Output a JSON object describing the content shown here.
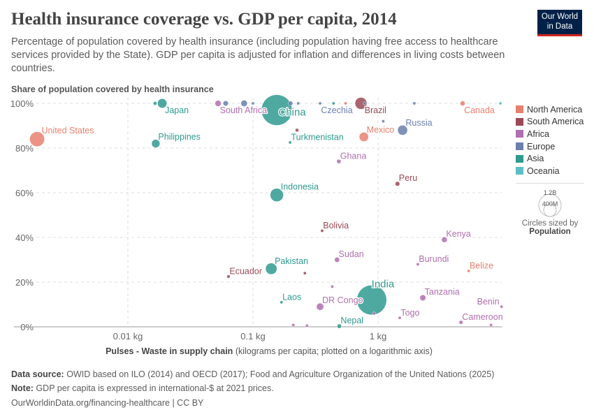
{
  "header": {
    "title": "Health insurance coverage vs. GDP per capita, 2014",
    "subtitle": "Percentage of population covered by health insurance (including population having free access to healthcare services provided by the State). GDP per capita is adjusted for inflation and differences in living costs between countries.",
    "logo_line1": "Our World",
    "logo_line2": "in Data"
  },
  "chart_data": {
    "type": "scatter",
    "title": "Health insurance coverage vs. GDP per capita, 2014",
    "ylabel": "Share of population covered by health insurance",
    "xlabel_bold": "Pulses - Waste in supply chain",
    "xlabel_rest": "(kilograms per capita; plotted on a logarithmic axis)",
    "xscale": "log",
    "xlim": [
      0.0012,
      9.8
    ],
    "ylim": [
      0,
      100
    ],
    "xticks": [
      {
        "v": 0.01,
        "label": "0.01 kg"
      },
      {
        "v": 0.1,
        "label": "0.1 kg"
      },
      {
        "v": 1,
        "label": "1 kg"
      }
    ],
    "yticks": [
      {
        "v": 0,
        "label": "0%"
      },
      {
        "v": 20,
        "label": "20%"
      },
      {
        "v": 40,
        "label": "40%"
      },
      {
        "v": 60,
        "label": "60%"
      },
      {
        "v": 80,
        "label": "80%"
      },
      {
        "v": 100,
        "label": "100%"
      }
    ],
    "colors": {
      "North America": "#e8806e",
      "South America": "#9b4a55",
      "Africa": "#b06fae",
      "Europe": "#6a7fae",
      "Asia": "#2f9a90",
      "Oceania": "#5bbec8"
    },
    "points": [
      {
        "name": "United States",
        "x": 0.00188,
        "y": 84,
        "region": "North America",
        "pop": 320,
        "label": true
      },
      {
        "name": "Japan",
        "x": 0.0188,
        "y": 100,
        "region": "Asia",
        "pop": 127,
        "label": true
      },
      {
        "name": "Philippines",
        "x": 0.0167,
        "y": 82,
        "region": "Asia",
        "pop": 100,
        "label": true
      },
      {
        "name": "South Africa",
        "x": 0.0526,
        "y": 100,
        "region": "Africa",
        "pop": 54,
        "label": true
      },
      {
        "name": "China",
        "x": 0.155,
        "y": 97,
        "region": "Asia",
        "pop": 1370,
        "label": true
      },
      {
        "name": "Czechia",
        "x": 0.344,
        "y": 100,
        "region": "Europe",
        "pop": 10,
        "label": true
      },
      {
        "name": "Brazil",
        "x": 0.73,
        "y": 100,
        "region": "South America",
        "pop": 204,
        "label": true
      },
      {
        "name": "Canada",
        "x": 4.74,
        "y": 100,
        "region": "North America",
        "pop": 35,
        "label": true
      },
      {
        "name": "Russia",
        "x": 1.57,
        "y": 88,
        "region": "Europe",
        "pop": 144,
        "label": true
      },
      {
        "name": "Mexico",
        "x": 0.77,
        "y": 85,
        "region": "North America",
        "pop": 125,
        "label": true
      },
      {
        "name": "Turkmenistan",
        "x": 0.198,
        "y": 82.5,
        "region": "Asia",
        "pop": 5,
        "label": true
      },
      {
        "name": "Ghana",
        "x": 0.486,
        "y": 74,
        "region": "Africa",
        "pop": 27,
        "label": true
      },
      {
        "name": "Peru",
        "x": 1.43,
        "y": 64,
        "region": "South America",
        "pop": 31,
        "label": true
      },
      {
        "name": "Indonesia",
        "x": 0.155,
        "y": 59,
        "region": "Asia",
        "pop": 255,
        "label": true
      },
      {
        "name": "Bolivia",
        "x": 0.357,
        "y": 43,
        "region": "South America",
        "pop": 11,
        "label": true
      },
      {
        "name": "Kenya",
        "x": 3.39,
        "y": 39,
        "region": "Africa",
        "pop": 46,
        "label": true
      },
      {
        "name": "Pakistan",
        "x": 0.14,
        "y": 26,
        "region": "Asia",
        "pop": 190,
        "label": true
      },
      {
        "name": "Ecuador",
        "x": 0.0637,
        "y": 22.5,
        "region": "South America",
        "pop": 16,
        "label": true
      },
      {
        "name": "Sudan",
        "x": 0.47,
        "y": 30,
        "region": "Africa",
        "pop": 38,
        "label": true
      },
      {
        "name": "Burundi",
        "x": 2.08,
        "y": 28,
        "region": "Africa",
        "pop": 10,
        "label": true
      },
      {
        "name": "Belize",
        "x": 5.3,
        "y": 25,
        "region": "North America",
        "pop": 0.4,
        "label": true
      },
      {
        "name": "India",
        "x": 0.89,
        "y": 12,
        "region": "Asia",
        "pop": 1290,
        "label": true
      },
      {
        "name": "Laos",
        "x": 0.169,
        "y": 11,
        "region": "Asia",
        "pop": 7,
        "label": true
      },
      {
        "name": "DR Congo",
        "x": 0.344,
        "y": 9,
        "region": "Africa",
        "pop": 75,
        "label": true
      },
      {
        "name": "Tanzania",
        "x": 2.28,
        "y": 13,
        "region": "Africa",
        "pop": 52,
        "label": true
      },
      {
        "name": "Benin",
        "x": 9.7,
        "y": 9,
        "region": "Africa",
        "pop": 10,
        "label": true
      },
      {
        "name": "Togo",
        "x": 1.49,
        "y": 4,
        "region": "Africa",
        "pop": 7,
        "label": true
      },
      {
        "name": "Cameroon",
        "x": 4.6,
        "y": 2,
        "region": "Africa",
        "pop": 22,
        "label": true
      },
      {
        "name": "Nepal",
        "x": 0.49,
        "y": 0.3,
        "region": "Asia",
        "pop": 28,
        "label": true
      },
      {
        "name": "",
        "x": 0.0165,
        "y": 100,
        "region": "Asia",
        "pop": 20,
        "label": false
      },
      {
        "name": "",
        "x": 0.0605,
        "y": 100,
        "region": "Europe",
        "pop": 40,
        "label": false
      },
      {
        "name": "",
        "x": 0.085,
        "y": 100,
        "region": "Europe",
        "pop": 60,
        "label": false
      },
      {
        "name": "",
        "x": 0.1,
        "y": 100,
        "region": "Europe",
        "pop": 10,
        "label": false
      },
      {
        "name": "",
        "x": 0.2,
        "y": 100,
        "region": "Europe",
        "pop": 30,
        "label": false
      },
      {
        "name": "",
        "x": 0.23,
        "y": 100,
        "region": "Europe",
        "pop": 8,
        "label": false
      },
      {
        "name": "",
        "x": 0.44,
        "y": 100,
        "region": "Asia",
        "pop": 8,
        "label": false
      },
      {
        "name": "",
        "x": 0.55,
        "y": 100,
        "region": "North America",
        "pop": 10,
        "label": false
      },
      {
        "name": "",
        "x": 0.78,
        "y": 100,
        "region": "Europe",
        "pop": 10,
        "label": false
      },
      {
        "name": "",
        "x": 1.95,
        "y": 100,
        "region": "Europe",
        "pop": 5,
        "label": false
      },
      {
        "name": "",
        "x": 9.5,
        "y": 100,
        "region": "Oceania",
        "pop": 5,
        "label": false
      },
      {
        "name": "",
        "x": 0.225,
        "y": 88,
        "region": "South America",
        "pop": 18,
        "label": false
      },
      {
        "name": "",
        "x": 1.1,
        "y": 92,
        "region": "Europe",
        "pop": 5,
        "label": false
      },
      {
        "name": "",
        "x": 0.26,
        "y": 24,
        "region": "South America",
        "pop": 6,
        "label": false
      },
      {
        "name": "",
        "x": 0.43,
        "y": 18,
        "region": "Africa",
        "pop": 6,
        "label": false
      },
      {
        "name": "",
        "x": 0.93,
        "y": 6,
        "region": "Africa",
        "pop": 6,
        "label": false
      },
      {
        "name": "",
        "x": 0.21,
        "y": 0.8,
        "region": "Africa",
        "pop": 5,
        "label": false
      },
      {
        "name": "",
        "x": 0.27,
        "y": 0.5,
        "region": "Africa",
        "pop": 5,
        "label": false
      },
      {
        "name": "",
        "x": 8.0,
        "y": 0.8,
        "region": "Africa",
        "pop": 5,
        "label": false
      }
    ]
  },
  "legend": {
    "items": [
      "North America",
      "South America",
      "Africa",
      "Europe",
      "Asia",
      "Oceania"
    ],
    "size_big": "1.2B",
    "size_small": "400M",
    "size_caption": "Circles sized by",
    "size_var": "Population"
  },
  "footer": {
    "source_label": "Data source:",
    "source": "OWID based on ILO (2014) and OECD (2017); Food and Agriculture Organization of the United Nations (2025)",
    "note_label": "Note:",
    "note": "GDP per capita is expressed in international-$ at 2021 prices.",
    "url": "OurWorldinData.org/financing-healthcare | CC BY"
  }
}
